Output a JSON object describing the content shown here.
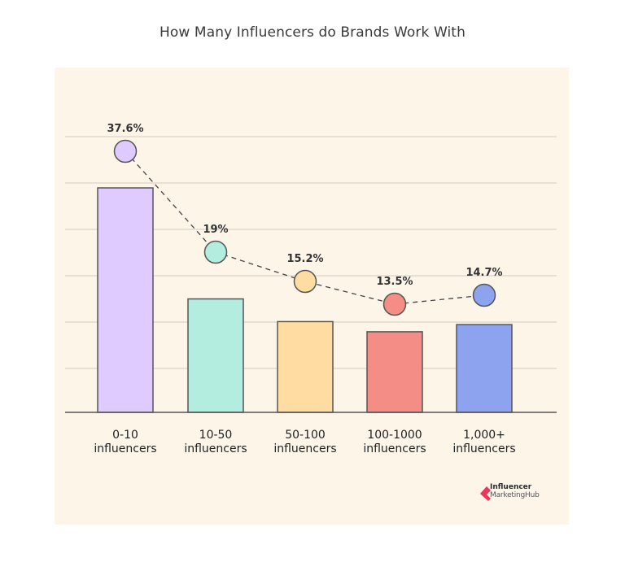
{
  "title": "How Many Influencers do Brands Work With",
  "colors": {
    "panel_bg": "#fef5e9",
    "grid": "#dcd4c8",
    "axis": "#555555",
    "outline": "#555555",
    "dash": "#444444"
  },
  "logo": {
    "line1": "Influencer",
    "line2": "MarketingHub",
    "mark_color": "#e8385a"
  },
  "chart_data": {
    "type": "bar",
    "title": "How Many Influencers do Brands Work With",
    "xlabel": "",
    "ylabel": "",
    "ylim": [
      0,
      42
    ],
    "grid": true,
    "legend": null,
    "categories": [
      "0-10 influencers",
      "10-50 influencers",
      "50-100 influencers",
      "100-1000 influencers",
      "1,000+ influencers"
    ],
    "category_lines": [
      [
        "0-10",
        "influencers"
      ],
      [
        "10-50",
        "influencers"
      ],
      [
        "50-100",
        "influencers"
      ],
      [
        "100-1000",
        "influencers"
      ],
      [
        "1,000+",
        "influencers"
      ]
    ],
    "values": [
      37.6,
      19,
      15.2,
      13.5,
      14.7
    ],
    "value_labels": [
      "37.6%",
      "19%",
      "15.2%",
      "13.5%",
      "14.7%"
    ],
    "bar_colors": [
      "#dfcbff",
      "#b2ede0",
      "#ffdca1",
      "#f48d86",
      "#8ea3ef"
    ],
    "overlay": "dashed line connecting circle markers at each value"
  }
}
